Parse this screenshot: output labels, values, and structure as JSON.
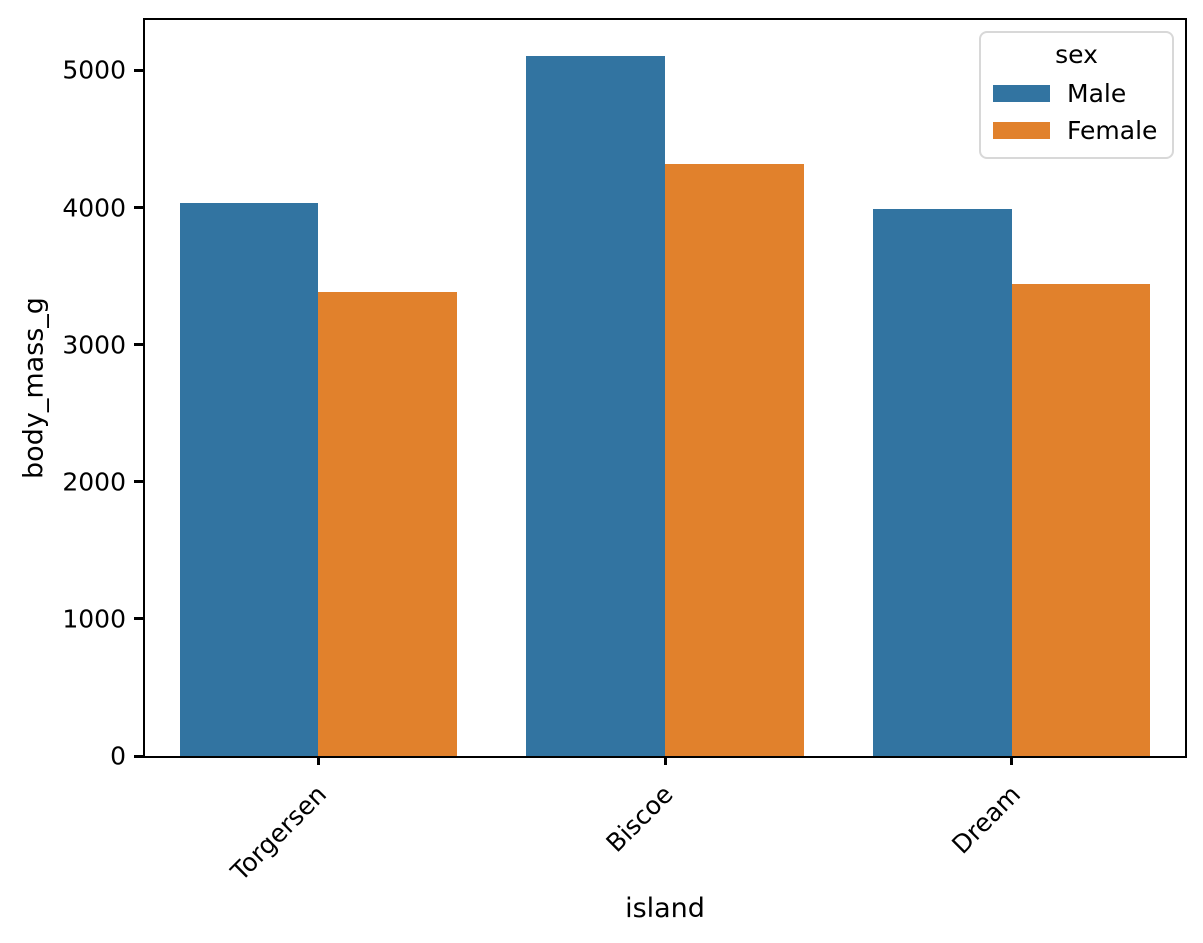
{
  "chart_data": {
    "type": "bar",
    "title": "",
    "xlabel": "island",
    "ylabel": "body_mass_g",
    "categories": [
      "Torgersen",
      "Biscoe",
      "Dream"
    ],
    "series": [
      {
        "name": "Male",
        "color": "#3274a1",
        "values": [
          4034,
          5105,
          3987
        ]
      },
      {
        "name": "Female",
        "color": "#e1812c",
        "values": [
          3386,
          4319,
          3446
        ]
      }
    ],
    "legend": {
      "title": "sex",
      "position": "upper right"
    },
    "ylim": [
      0,
      5368
    ],
    "yticks": [
      0,
      1000,
      2000,
      3000,
      4000,
      5000
    ],
    "grid": false,
    "xtick_rotation": 45,
    "bar_group_total_width_fraction": 0.8
  }
}
